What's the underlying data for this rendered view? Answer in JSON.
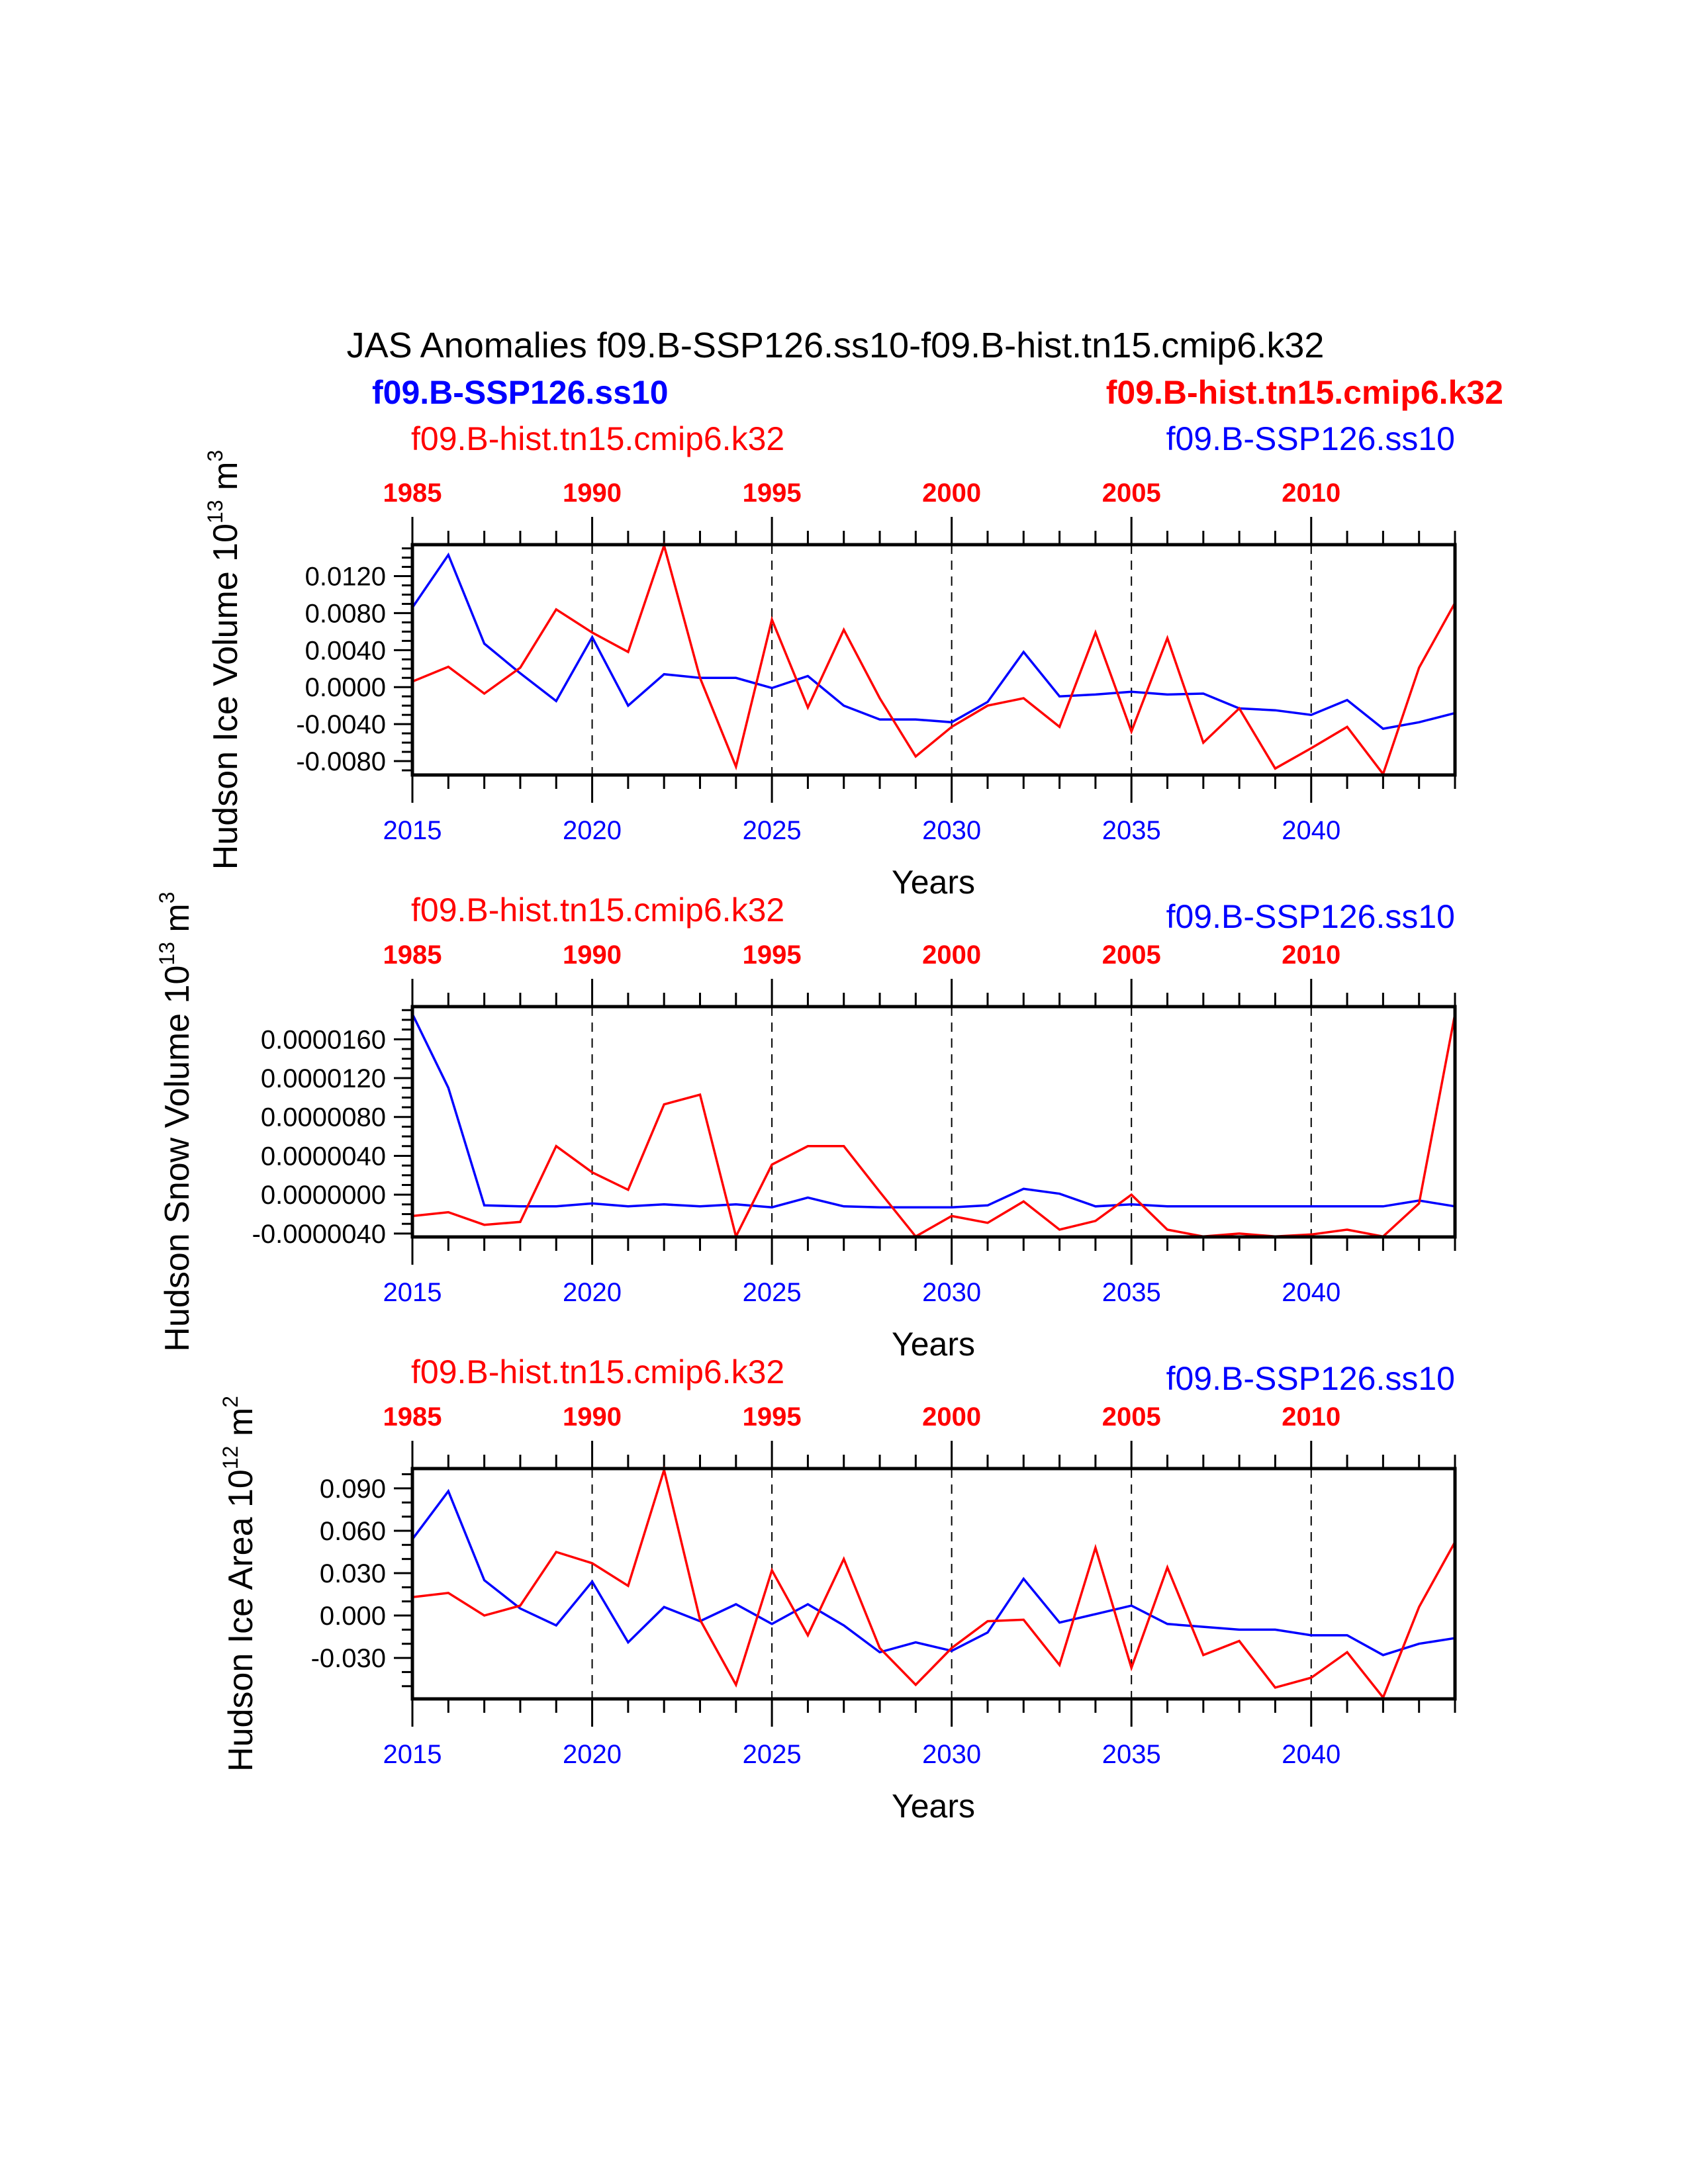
{
  "title": "JAS Anomalies f09.B-SSP126.ss10-f09.B-hist.tn15.cmip6.k32",
  "xlabel": "Years",
  "colors": {
    "hist": "#ff0000",
    "ssp": "#0000ff",
    "axis": "#000000"
  },
  "legend": {
    "hist": "f09.B-hist.tn15.cmip6.k32",
    "ssp": "f09.B-SSP126.ss10"
  },
  "bottom_ticks": [
    "2015",
    "2020",
    "2025",
    "2030",
    "2035",
    "2040"
  ],
  "top_ticks": [
    "1985",
    "1990",
    "1995",
    "2000",
    "2005",
    "2010"
  ],
  "chart_data": [
    {
      "type": "line",
      "ylabel": {
        "text": "Hudson Ice Volume 10",
        "exp1": "13",
        "unit": " m",
        "exp2": "3"
      },
      "xlim": [
        2015,
        2044
      ],
      "ylim": [
        -0.0095,
        0.0154
      ],
      "yticks": [
        -0.008,
        -0.004,
        0,
        0.004,
        0.008,
        0.012
      ],
      "ytick_labels": [
        "-0.0080",
        "-0.0040",
        "0.0000",
        "0.0040",
        "0.0080",
        "0.0120"
      ],
      "yminor": 0.001,
      "x": [
        2015,
        2016,
        2017,
        2018,
        2019,
        2020,
        2021,
        2022,
        2023,
        2024,
        2025,
        2026,
        2027,
        2028,
        2029,
        2030,
        2031,
        2032,
        2033,
        2034,
        2035,
        2036,
        2037,
        2038,
        2039,
        2040,
        2041,
        2042,
        2043,
        2044
      ],
      "series": [
        {
          "name": "f09.B-SSP126.ss10",
          "color": "#0000ff",
          "values": [
            0.0086,
            0.0143,
            0.0047,
            0.0015,
            -0.0015,
            0.0054,
            -0.002,
            0.0014,
            0.001,
            0.001,
            -0.0001,
            0.0012,
            -0.002,
            -0.0035,
            -0.0035,
            -0.0038,
            -0.0016,
            0.0038,
            -0.001,
            -0.0008,
            -0.0005,
            -0.0008,
            -0.0007,
            -0.0023,
            -0.0025,
            -0.003,
            -0.0014,
            -0.0045,
            -0.0038,
            -0.0028
          ]
        },
        {
          "name": "f09.B-hist.tn15.cmip6.k32",
          "color": "#ff0000",
          "values": [
            0.0006,
            0.0022,
            -0.0007,
            0.0021,
            0.0084,
            0.0059,
            0.0038,
            0.0153,
            0.001,
            -0.0086,
            0.0073,
            -0.0022,
            0.0062,
            -0.0012,
            -0.0075,
            -0.0043,
            -0.002,
            -0.0012,
            -0.0043,
            0.0059,
            -0.0048,
            0.0053,
            -0.006,
            -0.0023,
            -0.0088,
            -0.0066,
            -0.0043,
            -0.0094,
            0.0021,
            0.0091
          ]
        }
      ]
    },
    {
      "type": "line",
      "ylabel": {
        "text": "Hudson Snow Volume 10",
        "exp1": "13",
        "unit": " m",
        "exp2": "3"
      },
      "xlim": [
        2015,
        2044
      ],
      "ylim": [
        -4.35e-06,
        1.936e-05
      ],
      "yticks": [
        -4e-06,
        0,
        4e-06,
        8e-06,
        1.2e-05,
        1.6e-05
      ],
      "ytick_labels": [
        "-0.0000040",
        "0.0000000",
        "0.0000040",
        "0.0000080",
        "0.0000120",
        "0.0000160"
      ],
      "yminor": 1e-06,
      "x": [
        2015,
        2016,
        2017,
        2018,
        2019,
        2020,
        2021,
        2022,
        2023,
        2024,
        2025,
        2026,
        2027,
        2028,
        2029,
        2030,
        2031,
        2032,
        2033,
        2034,
        2035,
        2036,
        2037,
        2038,
        2039,
        2040,
        2041,
        2042,
        2043,
        2044
      ],
      "series": [
        {
          "name": "f09.B-SSP126.ss10",
          "color": "#0000ff",
          "values": [
            1.86e-05,
            1.1e-05,
            -1.1e-06,
            -1.2e-06,
            -1.2e-06,
            -9e-07,
            -1.2e-06,
            -1e-06,
            -1.2e-06,
            -1e-06,
            -1.3e-06,
            -3e-07,
            -1.2e-06,
            -1.3e-06,
            -1.3e-06,
            -1.3e-06,
            -1.1e-06,
            6e-07,
            1e-07,
            -1.2e-06,
            -1e-06,
            -1.2e-06,
            -1.2e-06,
            -1.2e-06,
            -1.2e-06,
            -1.2e-06,
            -1.2e-06,
            -1.2e-06,
            -6e-07,
            -1.2e-06
          ]
        },
        {
          "name": "f09.B-hist.tn15.cmip6.k32",
          "color": "#ff0000",
          "values": [
            -2.2e-06,
            -1.8e-06,
            -3.1e-06,
            -2.8e-06,
            5e-06,
            2.3e-06,
            5e-07,
            9.3e-06,
            1.03e-05,
            -4.3e-06,
            3.1e-06,
            5e-06,
            5e-06,
            3e-07,
            -4.3e-06,
            -2.2e-06,
            -2.9e-06,
            -7e-07,
            -3.6e-06,
            -2.7e-06,
            0.0,
            -3.6e-06,
            -4.3e-06,
            -4e-06,
            -4.3e-06,
            -4.1e-06,
            -3.6e-06,
            -4.3e-06,
            -9e-07,
            1.86e-05
          ]
        }
      ]
    },
    {
      "type": "line",
      "ylabel": {
        "text": "Hudson Ice Area 10",
        "exp1": "12",
        "unit": " m",
        "exp2": "2"
      },
      "xlim": [
        2015,
        2044
      ],
      "ylim": [
        -0.059,
        0.104
      ],
      "yticks": [
        -0.03,
        0,
        0.03,
        0.06,
        0.09
      ],
      "ytick_labels": [
        "-0.030",
        "0.000",
        "0.030",
        "0.060",
        "0.090"
      ],
      "yminor": 0.01,
      "x": [
        2015,
        2016,
        2017,
        2018,
        2019,
        2020,
        2021,
        2022,
        2023,
        2024,
        2025,
        2026,
        2027,
        2028,
        2029,
        2030,
        2031,
        2032,
        2033,
        2034,
        2035,
        2036,
        2037,
        2038,
        2039,
        2040,
        2041,
        2042,
        2043,
        2044
      ],
      "series": [
        {
          "name": "f09.B-SSP126.ss10",
          "color": "#0000ff",
          "values": [
            0.054,
            0.088,
            0.025,
            0.005,
            -0.007,
            0.024,
            -0.019,
            0.006,
            -0.004,
            0.008,
            -0.006,
            0.008,
            -0.007,
            -0.026,
            -0.019,
            -0.025,
            -0.012,
            0.026,
            -0.005,
            0.001,
            0.007,
            -0.006,
            -0.008,
            -0.01,
            -0.01,
            -0.014,
            -0.014,
            -0.028,
            -0.02,
            -0.016
          ]
        },
        {
          "name": "f09.B-hist.tn15.cmip6.k32",
          "color": "#ff0000",
          "values": [
            0.013,
            0.016,
            0.0,
            0.007,
            0.045,
            0.037,
            0.021,
            0.103,
            -0.003,
            -0.049,
            0.032,
            -0.014,
            0.04,
            -0.023,
            -0.049,
            -0.023,
            -0.004,
            -0.003,
            -0.035,
            0.048,
            -0.037,
            0.034,
            -0.028,
            -0.018,
            -0.051,
            -0.044,
            -0.026,
            -0.058,
            0.006,
            0.052
          ]
        }
      ]
    }
  ]
}
